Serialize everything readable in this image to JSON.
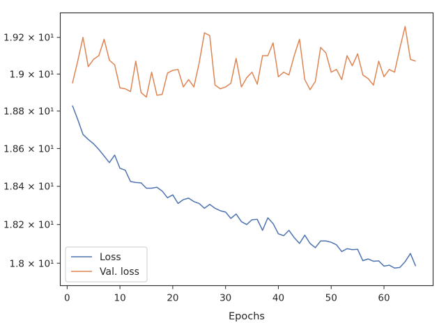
{
  "chart_data": {
    "type": "line",
    "title": "",
    "xlabel": "Epochs",
    "ylabel": "",
    "xlim": [
      -1.3,
      69.3
    ],
    "ylim": [
      17.885,
      19.335
    ],
    "xticks": [
      0,
      10,
      20,
      30,
      40,
      50,
      60
    ],
    "xtick_labels": [
      "0",
      "10",
      "20",
      "30",
      "40",
      "50",
      "60"
    ],
    "yticks": [
      18.0,
      18.2,
      18.4,
      18.6,
      18.8,
      19.0,
      19.2
    ],
    "ytick_labels": [
      "1.8 × 10¹",
      "1.82 × 10¹",
      "1.84 × 10¹",
      "1.86 × 10¹",
      "1.88 × 10¹",
      "1.9 × 10¹",
      "1.92 × 10¹"
    ],
    "y_scale": "log",
    "grid": false,
    "legend": {
      "location": "lower-left",
      "entries": [
        "Loss",
        "Val. loss"
      ]
    },
    "x": [
      1,
      2,
      3,
      4,
      5,
      6,
      7,
      8,
      9,
      10,
      11,
      12,
      13,
      14,
      15,
      16,
      17,
      18,
      19,
      20,
      21,
      22,
      23,
      24,
      25,
      26,
      27,
      28,
      29,
      30,
      31,
      32,
      33,
      34,
      35,
      36,
      37,
      38,
      39,
      40,
      41,
      42,
      43,
      44,
      45,
      46,
      47,
      48,
      49,
      50,
      51,
      52,
      53,
      54,
      55,
      56,
      57,
      58,
      59,
      60,
      61,
      62,
      63,
      64,
      65,
      66
    ],
    "series": [
      {
        "name": "Loss",
        "color": "#4c72b0",
        "values": [
          18.83,
          18.755,
          18.675,
          18.648,
          18.625,
          18.595,
          18.56,
          18.525,
          18.565,
          18.495,
          18.485,
          18.425,
          18.42,
          18.418,
          18.39,
          18.39,
          18.395,
          18.375,
          18.34,
          18.355,
          18.31,
          18.33,
          18.338,
          18.32,
          18.31,
          18.285,
          18.305,
          18.285,
          18.272,
          18.265,
          18.232,
          18.255,
          18.215,
          18.2,
          18.225,
          18.227,
          18.17,
          18.235,
          18.205,
          18.152,
          18.142,
          18.17,
          18.132,
          18.102,
          18.145,
          18.102,
          18.08,
          18.115,
          18.115,
          18.108,
          18.095,
          18.06,
          18.075,
          18.07,
          18.072,
          18.013,
          18.022,
          18.01,
          18.012,
          17.985,
          17.99,
          17.975,
          17.978,
          18.008,
          18.05,
          17.985
        ]
      },
      {
        "name": "Val. loss",
        "color": "#dd8452",
        "values": [
          18.95,
          19.07,
          19.2,
          19.04,
          19.08,
          19.1,
          19.19,
          19.075,
          19.05,
          18.925,
          18.92,
          18.905,
          19.07,
          18.9,
          18.875,
          19.01,
          18.885,
          18.89,
          19.005,
          19.02,
          19.025,
          18.93,
          18.97,
          18.93,
          19.06,
          19.225,
          19.21,
          18.94,
          18.92,
          18.93,
          18.95,
          19.085,
          18.93,
          18.98,
          19.01,
          18.945,
          19.1,
          19.1,
          19.17,
          18.985,
          19.01,
          18.995,
          19.1,
          19.19,
          18.97,
          18.915,
          18.96,
          19.145,
          19.115,
          19.01,
          19.025,
          18.97,
          19.1,
          19.045,
          19.11,
          18.995,
          18.975,
          18.94,
          19.07,
          18.985,
          19.025,
          19.01,
          19.14,
          19.26,
          19.08,
          19.07
        ]
      }
    ]
  }
}
